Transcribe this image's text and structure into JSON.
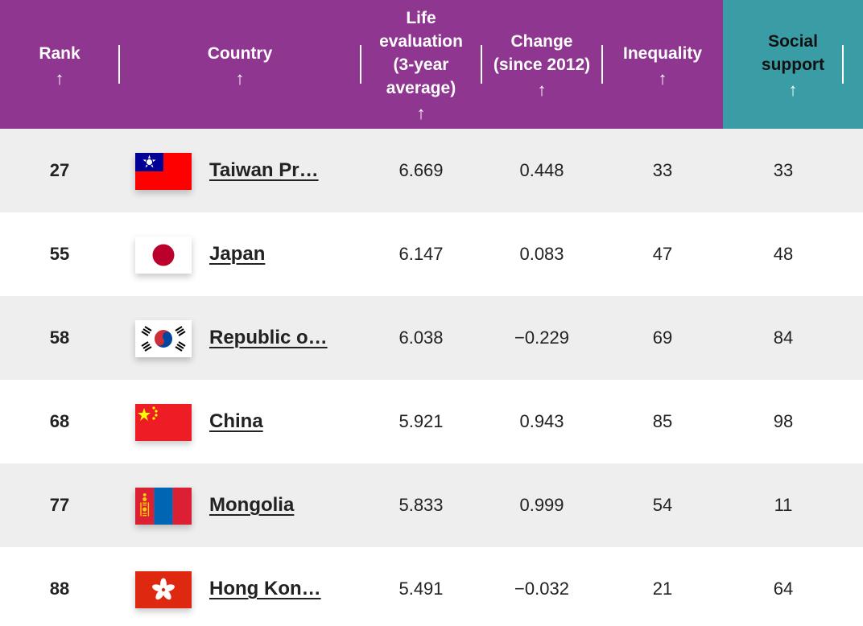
{
  "header": {
    "columns": [
      {
        "key": "rank",
        "label": "Rank",
        "arrow": "↑"
      },
      {
        "key": "country",
        "label": "Country",
        "arrow": "↑"
      },
      {
        "key": "life_evaluation",
        "label": "Life\nevaluation\n(3-year\naverage)",
        "arrow": "↑"
      },
      {
        "key": "change",
        "label": "Change\n(since 2012)",
        "arrow": "↑"
      },
      {
        "key": "inequality",
        "label": "Inequality",
        "arrow": "↑"
      },
      {
        "key": "social_support",
        "label": "Social\nsupport",
        "arrow": "↑",
        "active": true
      }
    ]
  },
  "rows": [
    {
      "rank": "27",
      "flag": "taiwan-flag-icon",
      "country": "Taiwan Pr…",
      "life_evaluation": "6.669",
      "change": "0.448",
      "inequality": "33",
      "social_support": "33"
    },
    {
      "rank": "55",
      "flag": "japan-flag-icon",
      "country": "Japan",
      "life_evaluation": "6.147",
      "change": "0.083",
      "inequality": "47",
      "social_support": "48"
    },
    {
      "rank": "58",
      "flag": "south-korea-flag-icon",
      "country": "Republic o…",
      "life_evaluation": "6.038",
      "change": "−0.229",
      "inequality": "69",
      "social_support": "84"
    },
    {
      "rank": "68",
      "flag": "china-flag-icon",
      "country": "China",
      "life_evaluation": "5.921",
      "change": "0.943",
      "inequality": "85",
      "social_support": "98"
    },
    {
      "rank": "77",
      "flag": "mongolia-flag-icon",
      "country": "Mongolia",
      "life_evaluation": "5.833",
      "change": "0.999",
      "inequality": "54",
      "social_support": "11"
    },
    {
      "rank": "88",
      "flag": "hong-kong-flag-icon",
      "country": "Hong Kon…",
      "life_evaluation": "5.491",
      "change": "−0.032",
      "inequality": "21",
      "social_support": "64"
    }
  ],
  "colors": {
    "header_bg": "#8e3690",
    "active_header_bg": "#3a9da6",
    "row_shade": "#eeeeee",
    "row_plain": "#ffffff"
  }
}
